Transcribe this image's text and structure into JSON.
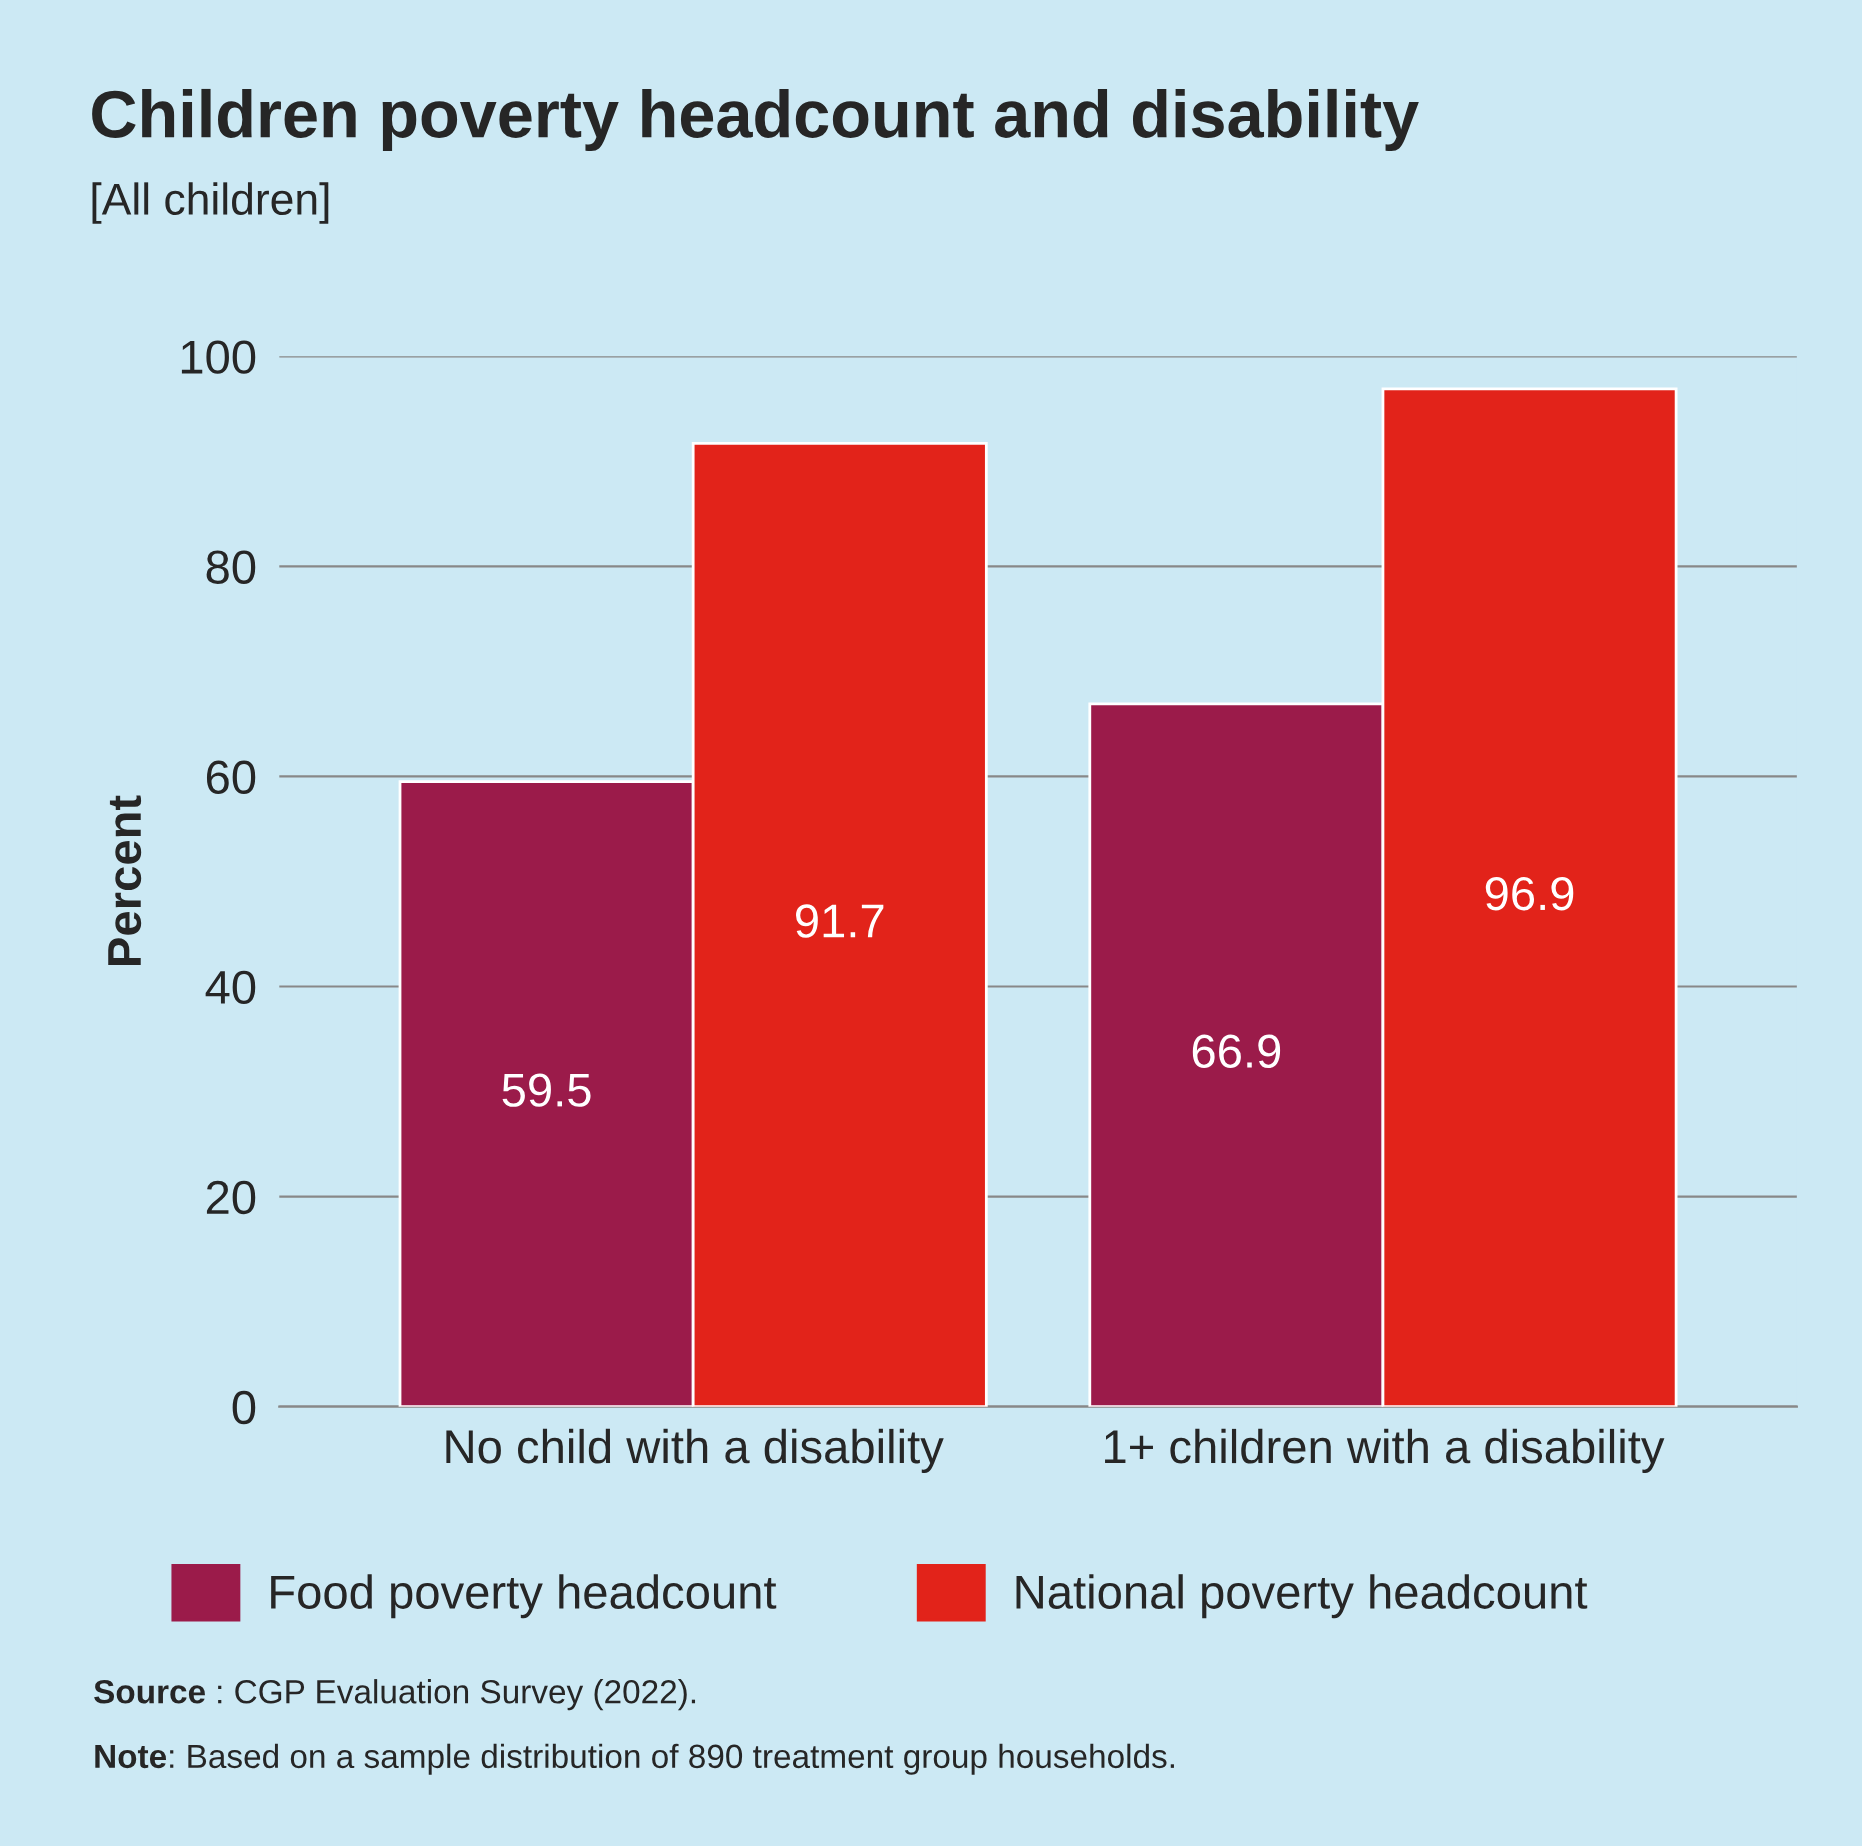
{
  "chart_data": {
    "type": "bar",
    "title": "Children poverty headcount and disability",
    "subtitle": "[All children]",
    "ylabel": "Percent",
    "categories": [
      "No child with a disability",
      "1+ children with a disability"
    ],
    "series": [
      {
        "name": "Food poverty headcount",
        "color": "#9b1b4a",
        "values": [
          59.5,
          66.9
        ]
      },
      {
        "name": "National poverty headcount",
        "color": "#e2231a",
        "values": [
          91.7,
          96.9
        ]
      }
    ],
    "ylim": [
      0,
      100
    ],
    "yticks": [
      0,
      20,
      40,
      60,
      80,
      100
    ],
    "grid": "y",
    "legend": "bottom",
    "data_labels": true,
    "annotations": [
      "Source : CGP Evaluation Survey (2022).",
      "Note: Based on a sample distribution of 890 treatment group households."
    ]
  }
}
